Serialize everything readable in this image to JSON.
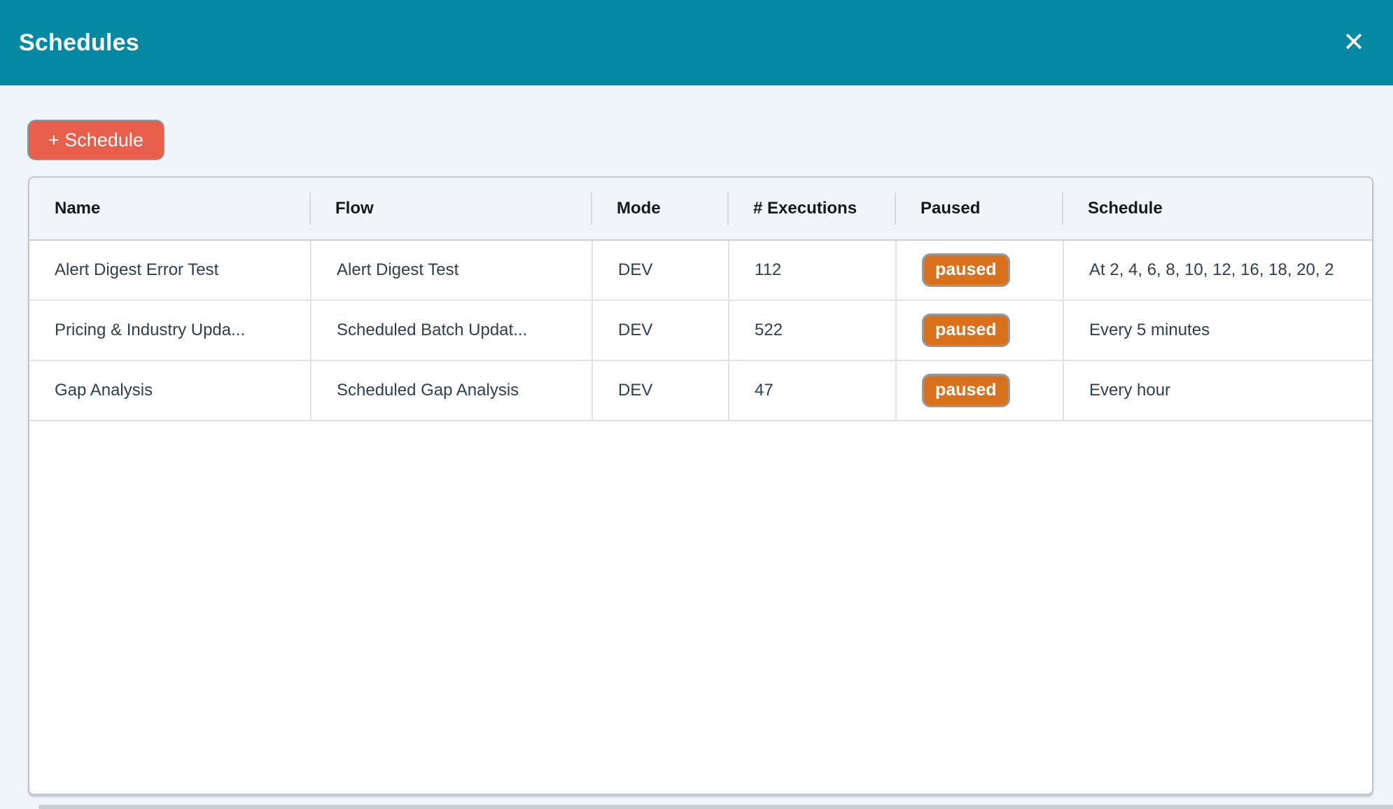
{
  "modal": {
    "title": "Schedules",
    "close_icon": "✕"
  },
  "toolbar": {
    "add_schedule_label": "+ Schedule"
  },
  "table": {
    "columns": [
      "Name",
      "Flow",
      "Mode",
      "# Executions",
      "Paused",
      "Schedule"
    ],
    "rows": [
      {
        "name": "Alert Digest Error Test",
        "flow": "Alert Digest Test",
        "mode": "DEV",
        "executions": "112",
        "paused_label": "paused",
        "schedule": "At 2, 4, 6, 8, 10, 12, 16, 18, 20, 2"
      },
      {
        "name": "Pricing & Industry Upda...",
        "flow": "Scheduled Batch Updat...",
        "mode": "DEV",
        "executions": "522",
        "paused_label": "paused",
        "schedule": "Every 5 minutes"
      },
      {
        "name": "Gap Analysis",
        "flow": "Scheduled Gap Analysis",
        "mode": "DEV",
        "executions": "47",
        "paused_label": "paused",
        "schedule": "Every hour"
      }
    ]
  },
  "colors": {
    "header_bg": "#0589A3",
    "page_bg": "#F0F5F9",
    "add_button_bg": "#E8604C",
    "paused_badge_bg": "#D9711C",
    "header_row_bg": "#F1F4F8",
    "cell_text": "#2F3F4E"
  }
}
